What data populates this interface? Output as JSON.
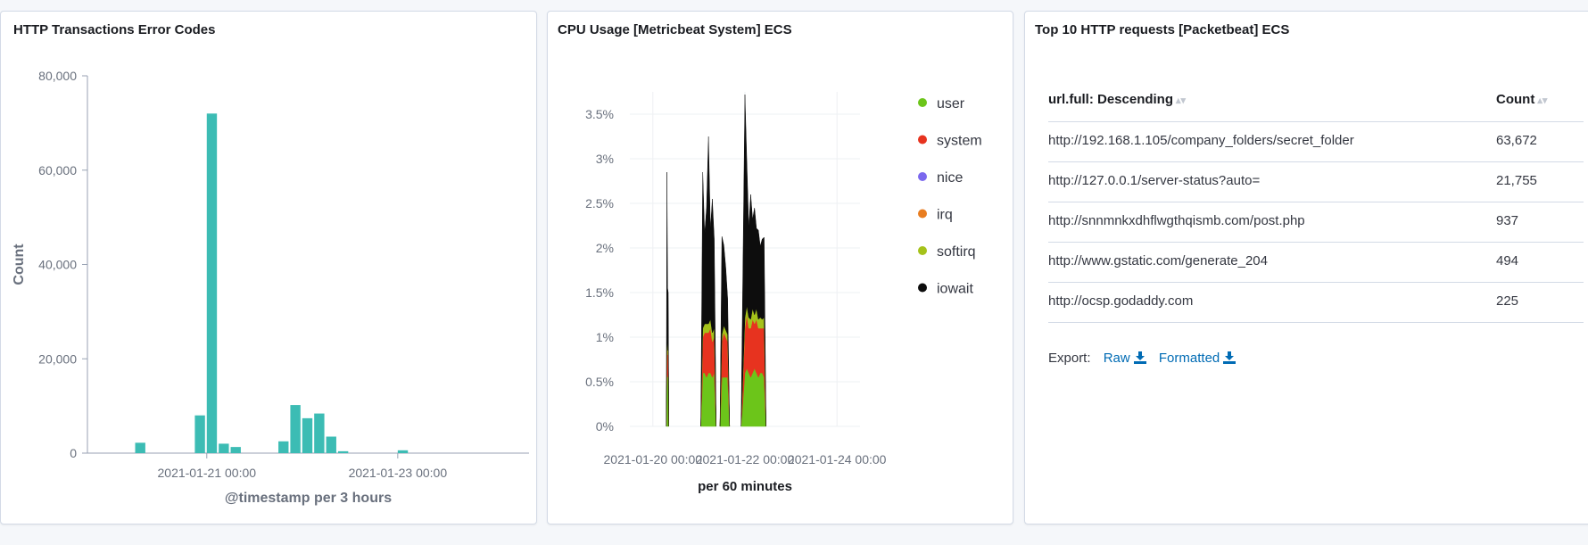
{
  "panels": {
    "p1_title": "HTTP Transactions Error Codes",
    "p2_title": "CPU Usage [Metricbeat System] ECS",
    "p3_title": "Top 10 HTTP requests [Packetbeat] ECS"
  },
  "colors": {
    "bar": "#3cbcb4",
    "user": "#6cc51a",
    "system": "#e7331f",
    "nice": "#7b68ee",
    "irq": "#e87d20",
    "softirq": "#a5c21a",
    "iowait": "#0d0d0d",
    "link": "#006bb4"
  },
  "chart_data": [
    {
      "type": "bar",
      "title": "HTTP Transactions Error Codes",
      "xlabel": "@timestamp per 3 hours",
      "ylabel": "Count",
      "ylim": [
        0,
        80000
      ],
      "yticks": [
        "0",
        "20,000",
        "40,000",
        "60,000",
        "80,000"
      ],
      "xticks": [
        "2021-01-21 00:00",
        "2021-01-23 00:00"
      ],
      "x_start": "2021-01-19 18:00",
      "x_end": "2021-01-24 09:00",
      "interval_hours": 3,
      "series": [
        {
          "x": [
            "2021-01-20 06:00",
            "2021-01-20 21:00",
            "2021-01-21 00:00",
            "2021-01-21 03:00",
            "2021-01-21 06:00",
            "2021-01-21 18:00",
            "2021-01-21 21:00",
            "2021-01-22 00:00",
            "2021-01-22 03:00",
            "2021-01-22 06:00",
            "2021-01-22 09:00",
            "2021-01-23 00:00"
          ],
          "values": [
            2200,
            8000,
            72000,
            2000,
            1300,
            2500,
            10200,
            7400,
            8400,
            3500,
            400,
            600
          ]
        }
      ]
    },
    {
      "type": "area",
      "title": "CPU Usage [Metricbeat System] ECS",
      "xlabel": "per 60 minutes",
      "ylabel": "",
      "ylim": [
        0,
        3.75
      ],
      "yticks": [
        "0%",
        "0.5%",
        "1%",
        "1.5%",
        "2%",
        "2.5%",
        "3%",
        "3.5%"
      ],
      "xticks": [
        "2021-01-20 00:00",
        "2021-01-22 00:00",
        "2021-01-24 00:00"
      ],
      "x_start": "2021-01-19 12:00",
      "x_end": "2021-01-24 12:00",
      "legend": [
        "user",
        "system",
        "nice",
        "irq",
        "softirq",
        "iowait"
      ],
      "legend_position": "right",
      "segments": [
        {
          "x": [
            "2021-01-20 07:00",
            "2021-01-20 07:20",
            "2021-01-20 07:40",
            "2021-01-20 08:00",
            "2021-01-20 08:20"
          ],
          "user": [
            0.0,
            0.6,
            0.55,
            0.6,
            0.0
          ],
          "system": [
            0.0,
            0.3,
            0.25,
            0.35,
            0.0
          ],
          "softirq": [
            0.0,
            0.05,
            0.05,
            0.05,
            0.0
          ],
          "iowait": [
            0.0,
            1.9,
            0.7,
            0.5,
            0.0
          ]
        },
        {
          "x": [
            "2021-01-21 01:00",
            "2021-01-21 02:00",
            "2021-01-21 03:00",
            "2021-01-21 04:00",
            "2021-01-21 05:00",
            "2021-01-21 06:00",
            "2021-01-21 07:00",
            "2021-01-21 08:00",
            "2021-01-21 09:00"
          ],
          "user": [
            0.0,
            0.6,
            0.6,
            0.55,
            0.6,
            0.6,
            0.55,
            0.6,
            0.0
          ],
          "system": [
            0.0,
            0.4,
            0.45,
            0.5,
            0.45,
            0.5,
            0.4,
            0.4,
            0.0
          ],
          "softirq": [
            0.0,
            0.1,
            0.1,
            0.1,
            0.1,
            0.1,
            0.1,
            0.1,
            0.0
          ],
          "iowait": [
            0.0,
            1.75,
            1.0,
            1.3,
            2.1,
            1.0,
            1.5,
            1.0,
            0.0
          ]
        },
        {
          "x": [
            "2021-01-21 11:00",
            "2021-01-21 12:00",
            "2021-01-21 13:00",
            "2021-01-21 14:00",
            "2021-01-21 15:00",
            "2021-01-21 16:00"
          ],
          "user": [
            0.0,
            0.55,
            0.55,
            0.55,
            0.55,
            0.0
          ],
          "system": [
            0.0,
            0.4,
            0.5,
            0.45,
            0.4,
            0.0
          ],
          "softirq": [
            0.0,
            0.08,
            0.08,
            0.08,
            0.08,
            0.0
          ],
          "iowait": [
            0.0,
            1.1,
            0.9,
            0.7,
            0.4,
            0.0
          ]
        },
        {
          "x": [
            "2021-01-21 22:00",
            "2021-01-22 00:00",
            "2021-01-22 01:00",
            "2021-01-22 02:00",
            "2021-01-22 03:00",
            "2021-01-22 04:00",
            "2021-01-22 05:00",
            "2021-01-22 06:00",
            "2021-01-22 07:00",
            "2021-01-22 08:00",
            "2021-01-22 09:00",
            "2021-01-22 10:00",
            "2021-01-22 11:00"
          ],
          "user": [
            0.0,
            0.6,
            0.65,
            0.6,
            0.55,
            0.6,
            0.65,
            0.6,
            0.55,
            0.6,
            0.6,
            0.55,
            0.0
          ],
          "system": [
            0.0,
            0.5,
            0.6,
            0.5,
            0.55,
            0.6,
            0.5,
            0.6,
            0.55,
            0.5,
            0.5,
            0.55,
            0.0
          ],
          "softirq": [
            0.0,
            0.12,
            0.1,
            0.12,
            0.1,
            0.12,
            0.1,
            0.12,
            0.1,
            0.12,
            0.1,
            0.12,
            0.0
          ],
          "iowait": [
            0.0,
            2.5,
            1.6,
            1.0,
            1.4,
            1.0,
            1.2,
            0.9,
            1.0,
            0.8,
            0.9,
            0.9,
            0.0
          ]
        }
      ]
    }
  ],
  "table": {
    "header": {
      "url": "url.full: Descending",
      "count": "Count"
    },
    "rows": [
      {
        "url": "http://192.168.1.105/company_folders/secret_folder",
        "count": "63,672"
      },
      {
        "url": "http://127.0.0.1/server-status?auto=",
        "count": "21,755"
      },
      {
        "url": "http://snnmnkxdhflwgthqismb.com/post.php",
        "count": "937"
      },
      {
        "url": "http://www.gstatic.com/generate_204",
        "count": "494"
      },
      {
        "url": "http://ocsp.godaddy.com",
        "count": "225"
      }
    ],
    "export_label": "Export:",
    "raw_label": "Raw",
    "formatted_label": "Formatted"
  }
}
